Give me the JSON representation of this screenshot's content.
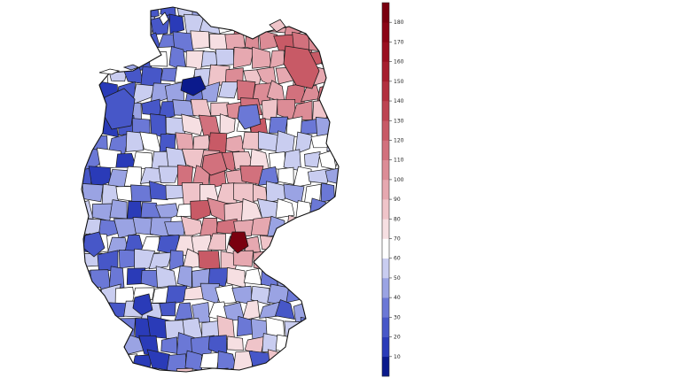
{
  "legend": {
    "ticks": [
      "10",
      "20",
      "30",
      "40",
      "50",
      "60",
      "70",
      "80",
      "90",
      "100",
      "110",
      "120",
      "130",
      "140",
      "150",
      "160",
      "170",
      "180"
    ],
    "range": [
      0,
      190
    ],
    "colors": [
      "#0b1a8c",
      "#2a3bb8",
      "#4757c8",
      "#6b78d6",
      "#9aa3e3",
      "#c9cdf0",
      "#ffffff",
      "#f6dfe2",
      "#efc4c9",
      "#e6a8b0",
      "#dc8c96",
      "#d2717d",
      "#c85a66",
      "#bd4452",
      "#b2303f",
      "#a61e2e",
      "#9a0f20",
      "#8b0516",
      "#7a000f"
    ]
  },
  "map": {
    "region": "germany-districts",
    "outline_color": "#1a1a1a"
  }
}
